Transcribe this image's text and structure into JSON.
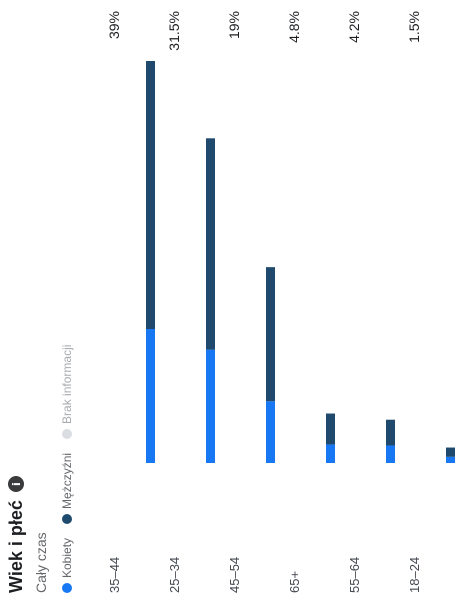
{
  "header": {
    "title": "Wiek i płeć",
    "info_icon": "info-icon",
    "subtitle": "Cały czas"
  },
  "legend": [
    {
      "label": "Kobiety",
      "color": "#1877f2"
    },
    {
      "label": "Mężczyźni",
      "color": "#1f4a6e"
    },
    {
      "label": "Brak informacji",
      "color": "#dadde1"
    }
  ],
  "chart_data": {
    "type": "bar",
    "orientation": "horizontal",
    "stacked": true,
    "categories": [
      "35–44",
      "25–34",
      "45–54",
      "65+",
      "55–64",
      "18–24"
    ],
    "value_labels": [
      "39%",
      "31.5%",
      "19%",
      "4.8%",
      "4.2%",
      "1.5%"
    ],
    "totals": [
      39,
      31.5,
      19,
      4.8,
      4.2,
      1.5
    ],
    "series": [
      {
        "name": "Kobiety",
        "color": "#1877f2",
        "values": [
          13,
          11,
          6,
          1.8,
          1.7,
          0.6
        ]
      },
      {
        "name": "Mężczyźni",
        "color": "#1f4a6e",
        "values": [
          26,
          20.5,
          13,
          3.0,
          2.5,
          0.9
        ]
      },
      {
        "name": "Brak informacji",
        "color": "#dadde1",
        "values": [
          0,
          0,
          0,
          0,
          0,
          0
        ]
      }
    ],
    "xlim": [
      0,
      39
    ],
    "grid": false
  }
}
